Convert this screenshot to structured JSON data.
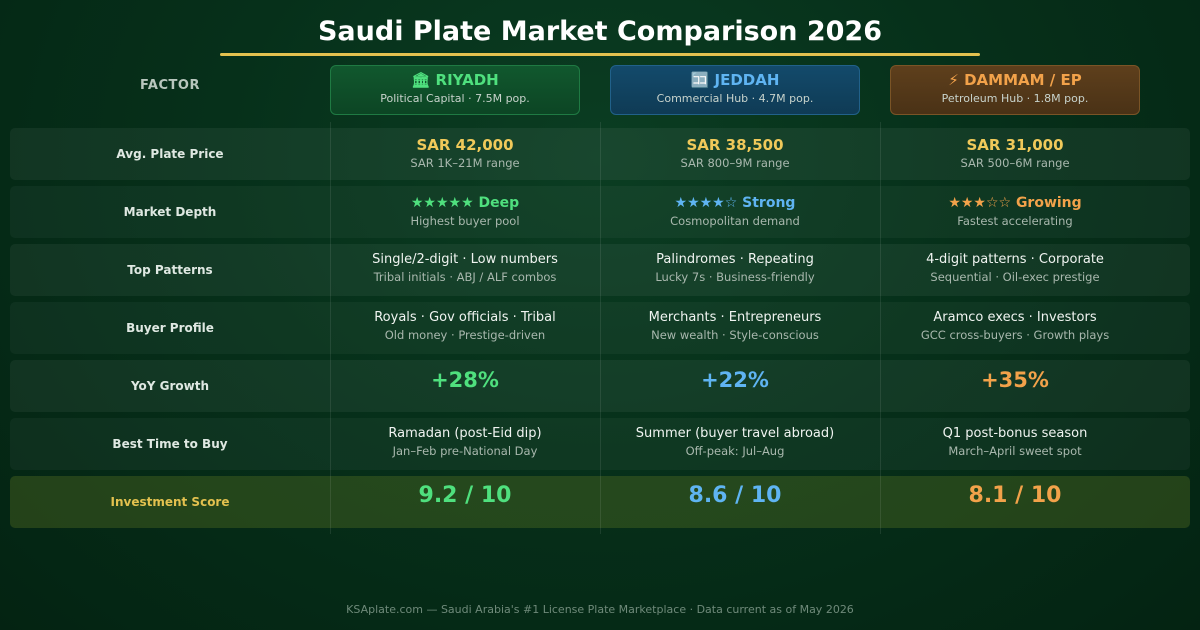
{
  "title": "Saudi Plate Market Comparison 2026",
  "factor_header": "FACTOR",
  "cities": [
    {
      "icon": "🏛",
      "icon_name": "building-icon",
      "name": "RIYADH",
      "sub": "Political Capital · 7.5M pop."
    },
    {
      "icon": "🈁",
      "icon_name": "bank-icon",
      "name": "JEDDAH",
      "sub": "Commercial Hub · 4.7M pop."
    },
    {
      "icon": "⚡",
      "icon_name": "lightning-icon",
      "name": "DAMMAM / EP",
      "sub": "Petroleum Hub · 1.8M pop."
    }
  ],
  "rows": [
    {
      "label": "Avg. Plate Price",
      "cells": [
        {
          "main": "SAR 42,000",
          "sub": "SAR 1K–21M range"
        },
        {
          "main": "SAR 38,500",
          "sub": "SAR 800–9M range"
        },
        {
          "main": "SAR 31,000",
          "sub": "SAR 500–6M range"
        }
      ]
    },
    {
      "label": "Market Depth",
      "cells": [
        {
          "main": "★★★★★ Deep",
          "sub": "Highest buyer pool"
        },
        {
          "main": "★★★★☆ Strong",
          "sub": "Cosmopolitan demand"
        },
        {
          "main": "★★★☆☆ Growing",
          "sub": "Fastest accelerating"
        }
      ]
    },
    {
      "label": "Top Patterns",
      "cells": [
        {
          "main": "Single/2-digit · Low numbers",
          "sub": "Tribal initials · ABJ / ALF combos"
        },
        {
          "main": "Palindromes · Repeating",
          "sub": "Lucky 7s · Business-friendly"
        },
        {
          "main": "4-digit patterns · Corporate",
          "sub": "Sequential · Oil-exec prestige"
        }
      ]
    },
    {
      "label": "Buyer Profile",
      "cells": [
        {
          "main": "Royals · Gov officials · Tribal",
          "sub": "Old money · Prestige-driven"
        },
        {
          "main": "Merchants · Entrepreneurs",
          "sub": "New wealth · Style-conscious"
        },
        {
          "main": "Aramco execs · Investors",
          "sub": "GCC cross-buyers · Growth plays"
        }
      ]
    },
    {
      "label": "YoY Growth",
      "cells": [
        {
          "main": "+28%"
        },
        {
          "main": "+22%"
        },
        {
          "main": "+35%"
        }
      ]
    },
    {
      "label": "Best Time to Buy",
      "cells": [
        {
          "main": "Ramadan (post-Eid dip)",
          "sub": "Jan–Feb pre-National Day"
        },
        {
          "main": "Summer (buyer travel abroad)",
          "sub": "Off-peak: Jul–Aug"
        },
        {
          "main": "Q1 post-bonus season",
          "sub": "March–April sweet spot"
        }
      ]
    },
    {
      "label": "Investment Score",
      "cells": [
        {
          "main": "9.2 / 10"
        },
        {
          "main": "8.6 / 10"
        },
        {
          "main": "8.1 / 10"
        }
      ]
    }
  ],
  "colors": {
    "riyadh": "#4fe07e",
    "jeddah": "#5fb4f2",
    "dammam": "#f2a24a",
    "gold": "#e3c14f"
  },
  "footer": "KSAplate.com — Saudi Arabia's #1 License Plate Marketplace · Data current as of May 2026"
}
